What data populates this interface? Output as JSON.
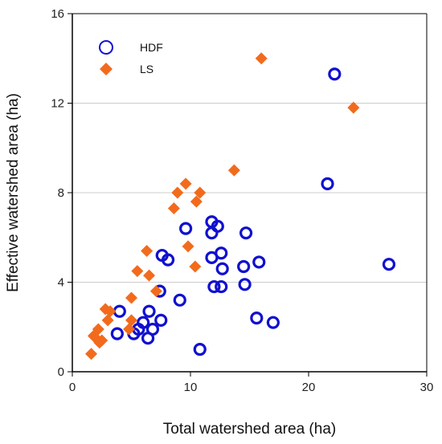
{
  "chart_data": {
    "type": "scatter",
    "title": "",
    "xlabel": "Total watershed area (ha)",
    "ylabel": "Effective watershed area (ha)",
    "xlim": [
      0,
      30
    ],
    "ylim": [
      0,
      16
    ],
    "x_ticks": [
      "0",
      "10",
      "20",
      "30"
    ],
    "y_ticks": [
      "0",
      "4",
      "8",
      "12",
      "16"
    ],
    "grid": "horizontal",
    "legend": "top-left",
    "series": [
      {
        "name": "HDF",
        "marker": "circle",
        "color": "#1010d0",
        "points": [
          [
            3.8,
            1.7
          ],
          [
            4.0,
            2.7
          ],
          [
            5.2,
            1.7
          ],
          [
            5.6,
            1.9
          ],
          [
            6.0,
            2.2
          ],
          [
            6.4,
            1.5
          ],
          [
            6.5,
            2.7
          ],
          [
            6.8,
            1.9
          ],
          [
            7.4,
            3.6
          ],
          [
            7.5,
            2.3
          ],
          [
            7.6,
            5.2
          ],
          [
            8.1,
            5.0
          ],
          [
            9.1,
            3.2
          ],
          [
            9.6,
            6.4
          ],
          [
            10.8,
            1.0
          ],
          [
            11.8,
            6.7
          ],
          [
            11.8,
            6.2
          ],
          [
            11.8,
            5.1
          ],
          [
            12.0,
            3.8
          ],
          [
            12.3,
            6.5
          ],
          [
            12.6,
            5.3
          ],
          [
            12.6,
            3.8
          ],
          [
            12.7,
            4.6
          ],
          [
            14.5,
            4.7
          ],
          [
            14.6,
            3.9
          ],
          [
            14.7,
            6.2
          ],
          [
            15.6,
            2.4
          ],
          [
            15.8,
            4.9
          ],
          [
            17.0,
            2.2
          ],
          [
            21.6,
            8.4
          ],
          [
            22.2,
            13.3
          ],
          [
            26.8,
            4.8
          ]
        ]
      },
      {
        "name": "LS",
        "marker": "diamond",
        "color": "#f26b1d",
        "points": [
          [
            1.6,
            0.8
          ],
          [
            1.8,
            1.6
          ],
          [
            2.0,
            1.5
          ],
          [
            2.2,
            1.9
          ],
          [
            2.3,
            1.3
          ],
          [
            2.5,
            1.4
          ],
          [
            2.8,
            2.8
          ],
          [
            3.0,
            2.3
          ],
          [
            3.2,
            2.7
          ],
          [
            4.8,
            1.9
          ],
          [
            5.0,
            2.3
          ],
          [
            5.0,
            3.3
          ],
          [
            5.5,
            4.5
          ],
          [
            6.3,
            5.4
          ],
          [
            6.5,
            4.3
          ],
          [
            7.1,
            3.6
          ],
          [
            8.6,
            7.3
          ],
          [
            8.9,
            8.0
          ],
          [
            9.6,
            8.4
          ],
          [
            9.8,
            5.6
          ],
          [
            10.4,
            4.7
          ],
          [
            10.5,
            7.6
          ],
          [
            10.8,
            8.0
          ],
          [
            13.7,
            9.0
          ],
          [
            16.0,
            14.0
          ],
          [
            23.8,
            11.8
          ]
        ]
      }
    ]
  }
}
